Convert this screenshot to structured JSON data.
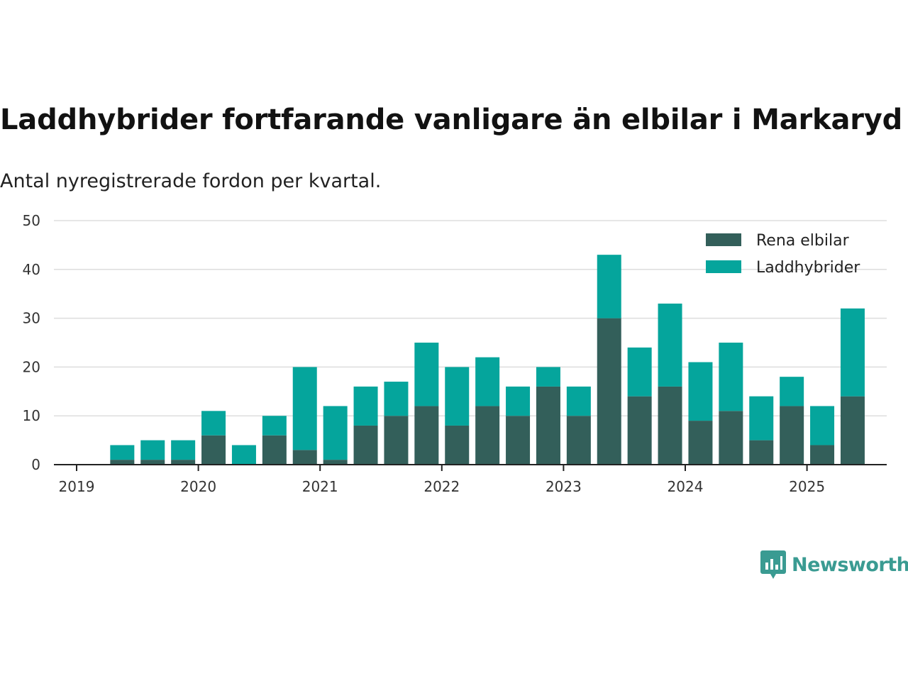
{
  "title": "Laddhybrider fortfarande vanligare än elbilar i Markaryd",
  "subtitle": "Antal nyregistrerade fordon per kvartal.",
  "brand": {
    "name": "Newsworthy"
  },
  "colors": {
    "rena": "#335f5a",
    "ladd": "#05a59c",
    "grid": "#dddddd",
    "axis": "#222222",
    "brand": "#3a9b92"
  },
  "chart_data": {
    "type": "bar",
    "stacked": true,
    "categories": [
      "2019 Q2",
      "2019 Q3",
      "2019 Q4",
      "2020 Q1",
      "2020 Q2",
      "2020 Q3",
      "2020 Q4",
      "2021 Q1",
      "2021 Q2",
      "2021 Q3",
      "2021 Q4",
      "2022 Q1",
      "2022 Q2",
      "2022 Q3",
      "2022 Q4",
      "2023 Q1",
      "2023 Q2",
      "2023 Q3",
      "2023 Q4",
      "2024 Q1",
      "2024 Q2",
      "2024 Q3",
      "2024 Q4",
      "2025 Q1",
      "2025 Q2"
    ],
    "series": [
      {
        "name": "Rena elbilar",
        "values": [
          1,
          1,
          1,
          6,
          0,
          6,
          3,
          1,
          8,
          10,
          12,
          8,
          12,
          10,
          16,
          10,
          30,
          14,
          16,
          9,
          11,
          5,
          12,
          4,
          14
        ]
      },
      {
        "name": "Laddhybrider",
        "values": [
          3,
          4,
          4,
          5,
          4,
          4,
          17,
          11,
          8,
          7,
          13,
          12,
          10,
          6,
          4,
          6,
          13,
          10,
          17,
          12,
          14,
          9,
          6,
          8,
          18
        ]
      }
    ],
    "x_tick_labels": [
      "2019",
      "2020",
      "2021",
      "2022",
      "2023",
      "2024",
      "2025"
    ],
    "y_ticks": [
      "0",
      "10",
      "20",
      "30",
      "40",
      "50"
    ],
    "ylim": [
      0,
      50
    ],
    "grid": true,
    "legend": "top-right"
  }
}
